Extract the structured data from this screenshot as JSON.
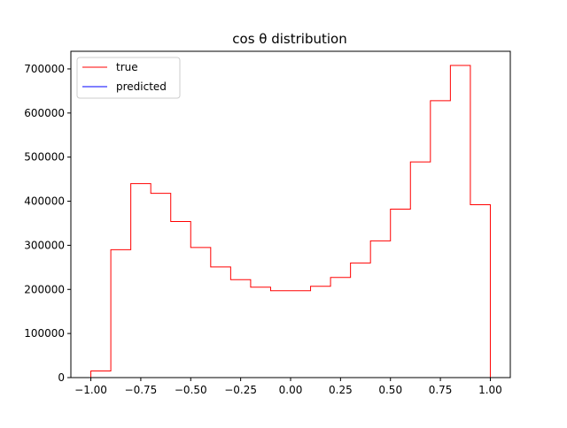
{
  "chart_data": {
    "type": "histogram",
    "title": "cos θ distribution",
    "xlabel": "",
    "ylabel": "",
    "xlim": [
      -1.1,
      1.1
    ],
    "ylim": [
      0,
      740000
    ],
    "xticks": [
      -1.0,
      -0.75,
      -0.5,
      -0.25,
      0.0,
      0.25,
      0.5,
      0.75,
      1.0
    ],
    "xtick_labels": [
      "−1.00",
      "−0.75",
      "−0.50",
      "−0.25",
      "0.00",
      "0.25",
      "0.50",
      "0.75",
      "1.00"
    ],
    "yticks": [
      0,
      100000,
      200000,
      300000,
      400000,
      500000,
      600000,
      700000
    ],
    "ytick_labels": [
      "0",
      "100000",
      "200000",
      "300000",
      "400000",
      "500000",
      "600000",
      "700000"
    ],
    "grid": false,
    "legend_position": "top-left",
    "bin_edges": [
      -1.0,
      -0.9,
      -0.8,
      -0.7,
      -0.6,
      -0.5,
      -0.4,
      -0.3,
      -0.2,
      -0.1,
      0.0,
      0.1,
      0.2,
      0.3,
      0.4,
      0.5,
      0.6,
      0.7,
      0.8,
      0.9,
      1.0
    ],
    "series": [
      {
        "name": "true",
        "color": "#ff0000",
        "values": [
          15000,
          290000,
          440000,
          418000,
          354000,
          295000,
          251000,
          222000,
          205000,
          197000,
          197000,
          207000,
          227000,
          260000,
          310000,
          382000,
          489000,
          628000,
          708000,
          392000
        ]
      },
      {
        "name": "predicted",
        "color": "#0000ff",
        "values": [
          0,
          0,
          0,
          0,
          0,
          0,
          0,
          0,
          0,
          0,
          0,
          0,
          0,
          0,
          0,
          0,
          0,
          0,
          0,
          0
        ]
      }
    ]
  }
}
